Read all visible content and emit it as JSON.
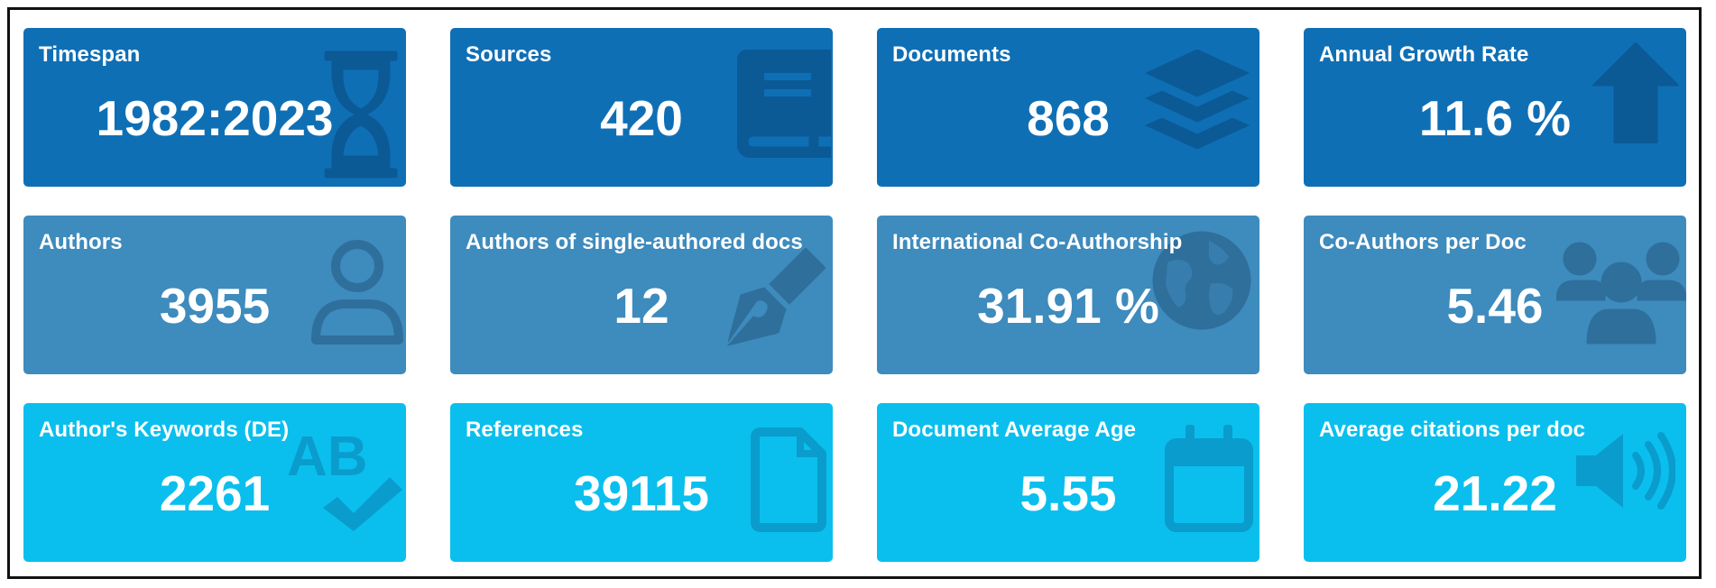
{
  "cards": [
    {
      "title": "Timespan",
      "value": "1982:2023",
      "icon": "hourglass-icon",
      "tone": "dark"
    },
    {
      "title": "Sources",
      "value": "420",
      "icon": "book-icon",
      "tone": "dark"
    },
    {
      "title": "Documents",
      "value": "868",
      "icon": "layers-icon",
      "tone": "dark"
    },
    {
      "title": "Annual Growth Rate",
      "value": "11.6 %",
      "icon": "arrow-up-icon",
      "tone": "dark"
    },
    {
      "title": "Authors",
      "value": "3955",
      "icon": "user-icon",
      "tone": "mid"
    },
    {
      "title": "Authors of single-authored docs",
      "value": "12",
      "icon": "pen-nib-icon",
      "tone": "mid"
    },
    {
      "title": "International Co-Authorship",
      "value": "31.91 %",
      "icon": "globe-icon",
      "tone": "mid"
    },
    {
      "title": "Co-Authors per Doc",
      "value": "5.46",
      "icon": "users-icon",
      "tone": "mid"
    },
    {
      "title": "Author's Keywords (DE)",
      "value": "2261",
      "icon": "spellcheck-icon",
      "tone": "light"
    },
    {
      "title": "References",
      "value": "39115",
      "icon": "file-icon",
      "tone": "light"
    },
    {
      "title": "Document Average Age",
      "value": "5.55",
      "icon": "calendar-icon",
      "tone": "light"
    },
    {
      "title": "Average citations per doc",
      "value": "21.22",
      "icon": "volume-icon",
      "tone": "light"
    }
  ],
  "colors": {
    "dark": "#0f6fb5",
    "mid": "#3e8bbd",
    "light": "#0abfed",
    "text": "#ffffff"
  }
}
